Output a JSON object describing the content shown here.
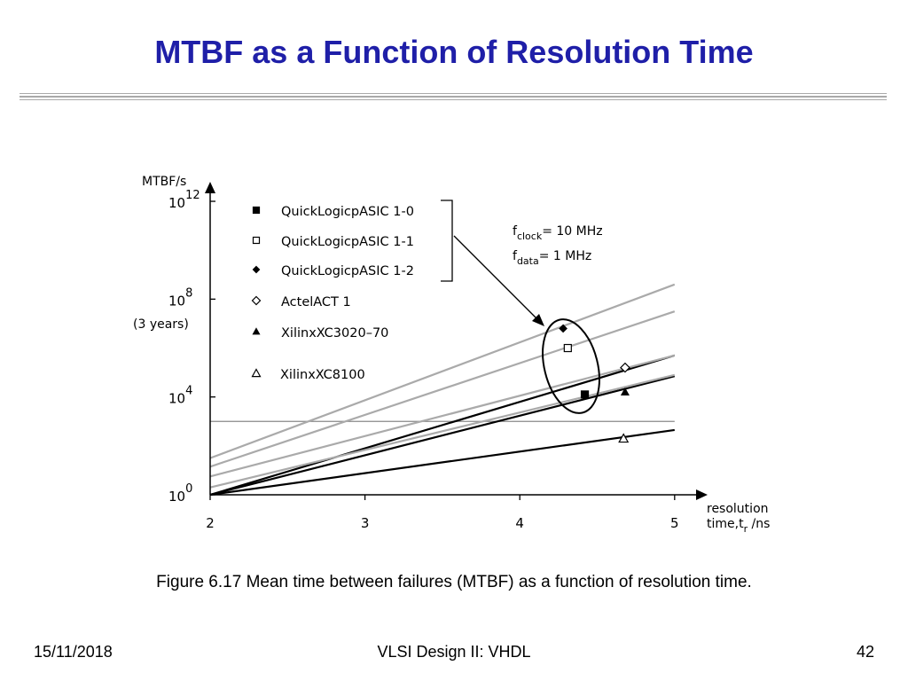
{
  "slide": {
    "title": "MTBF as a Function of Resolution Time",
    "caption": "Figure 6.17 Mean time between failures (MTBF) as a function of resolution time.",
    "footer_date": "15/11/2018",
    "footer_center": "VLSI Design II: VHDL",
    "page_number": "42"
  },
  "colors": {
    "title": "#1f1fa8",
    "dark_line": "#000000",
    "light_line": "#aaaaaa"
  },
  "chart_data": {
    "type": "line",
    "y_scale": "log",
    "ylabel": "MTBF/s",
    "xlabel_line1": "resolution",
    "xlabel_line2_prefix": "time,t",
    "xlabel_subscript": "r",
    "xlabel_line2_suffix": " /ns",
    "xlim": [
      2,
      5.15
    ],
    "ylim_exponents": [
      0,
      12.4
    ],
    "x_ticks": [
      "2",
      "3",
      "4",
      "5"
    ],
    "y_ticks": [
      {
        "base": "10",
        "exp": "0"
      },
      {
        "base": "10",
        "exp": "4"
      },
      {
        "base": "10",
        "exp": "8"
      },
      {
        "base": "10",
        "exp": "12"
      }
    ],
    "y_annotation": "(3 years)",
    "reference_line_log10": 3.0,
    "legend": [
      {
        "label": "QuickLogicpASIC 1-0",
        "marker": "filled-square"
      },
      {
        "label": "QuickLogicpASIC 1-1",
        "marker": "open-square"
      },
      {
        "label": "QuickLogicpASIC 1-2",
        "marker": "filled-diamond"
      },
      {
        "label": "ActelACT 1",
        "marker": "open-diamond"
      },
      {
        "label": "XilinxXC3020–70",
        "marker": "filled-triangle"
      },
      {
        "label": "XilinxXC8100",
        "marker": "open-triangle"
      }
    ],
    "conditions": {
      "clock_prefix": "f",
      "clock_sub": "clock",
      "clock_value": "= 10 MHz",
      "data_prefix": "f",
      "data_sub": "data",
      "data_value": "= 1 MHz"
    },
    "series": [
      {
        "shade": "dark",
        "points": [
          [
            2,
            0
          ],
          [
            5.0,
            5.7
          ]
        ]
      },
      {
        "shade": "dark",
        "points": [
          [
            2,
            0
          ],
          [
            5.0,
            4.85
          ]
        ]
      },
      {
        "shade": "dark",
        "points": [
          [
            2,
            0
          ],
          [
            5.0,
            2.65
          ]
        ]
      },
      {
        "shade": "light",
        "points": [
          [
            2,
            1.5
          ],
          [
            5.0,
            8.6
          ]
        ]
      },
      {
        "shade": "light",
        "points": [
          [
            2,
            1.15
          ],
          [
            5.0,
            7.5
          ]
        ]
      },
      {
        "shade": "light",
        "points": [
          [
            2,
            0.75
          ],
          [
            5.0,
            5.7
          ]
        ]
      },
      {
        "shade": "light",
        "points": [
          [
            2,
            0.3
          ],
          [
            5.0,
            4.9
          ]
        ]
      }
    ],
    "markers": [
      {
        "label": "QuickLogicpASIC 1-0",
        "marker": "filled-square",
        "x": 4.42,
        "y": 4.1
      },
      {
        "label": "QuickLogicpASIC 1-1",
        "marker": "open-square",
        "x": 4.31,
        "y": 6.0
      },
      {
        "label": "QuickLogicpASIC 1-2",
        "marker": "filled-diamond",
        "x": 4.28,
        "y": 6.8
      },
      {
        "label": "ActelACT 1",
        "marker": "open-diamond",
        "x": 4.68,
        "y": 5.2
      },
      {
        "label": "XilinxXC3020–70",
        "marker": "filled-triangle",
        "x": 4.68,
        "y": 4.2
      },
      {
        "label": "XilinxXC8100",
        "marker": "open-triangle",
        "x": 4.67,
        "y": 2.3
      }
    ]
  }
}
